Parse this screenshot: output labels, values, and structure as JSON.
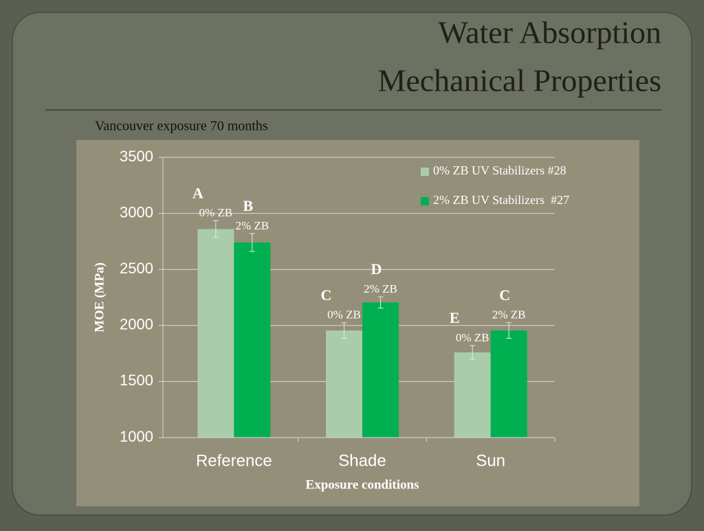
{
  "chart_data": {
    "type": "bar",
    "title": [
      "Water Absorption",
      "Mechanical Properties"
    ],
    "subtitle": "Vancouver exposure 70 months",
    "xlabel": "Exposure conditions",
    "ylabel": "MOE (MPa)",
    "categories": [
      "Reference",
      "Shade",
      "Sun"
    ],
    "series": [
      {
        "name": "0% ZB UV Stabilizers #28",
        "color": "#a9cdaa",
        "values": [
          2860,
          1955,
          1760
        ],
        "errors": [
          75,
          70,
          60
        ],
        "labels": [
          "0% ZB",
          "0% ZB",
          "0% ZB"
        ],
        "letters": [
          "A",
          "C",
          "E"
        ]
      },
      {
        "name": "2% ZB UV Stabilizers  #27",
        "color": "#00b050",
        "values": [
          2740,
          2205,
          1955
        ],
        "errors": [
          80,
          50,
          70
        ],
        "labels": [
          "2% ZB",
          "2% ZB",
          "2% ZB"
        ],
        "letters": [
          "B",
          "D",
          "C"
        ]
      }
    ],
    "ylim": [
      1000,
      3500
    ],
    "yticks": [
      1000,
      1500,
      2000,
      2500,
      3000,
      3500
    ],
    "grid": true,
    "legend": "top-right"
  }
}
